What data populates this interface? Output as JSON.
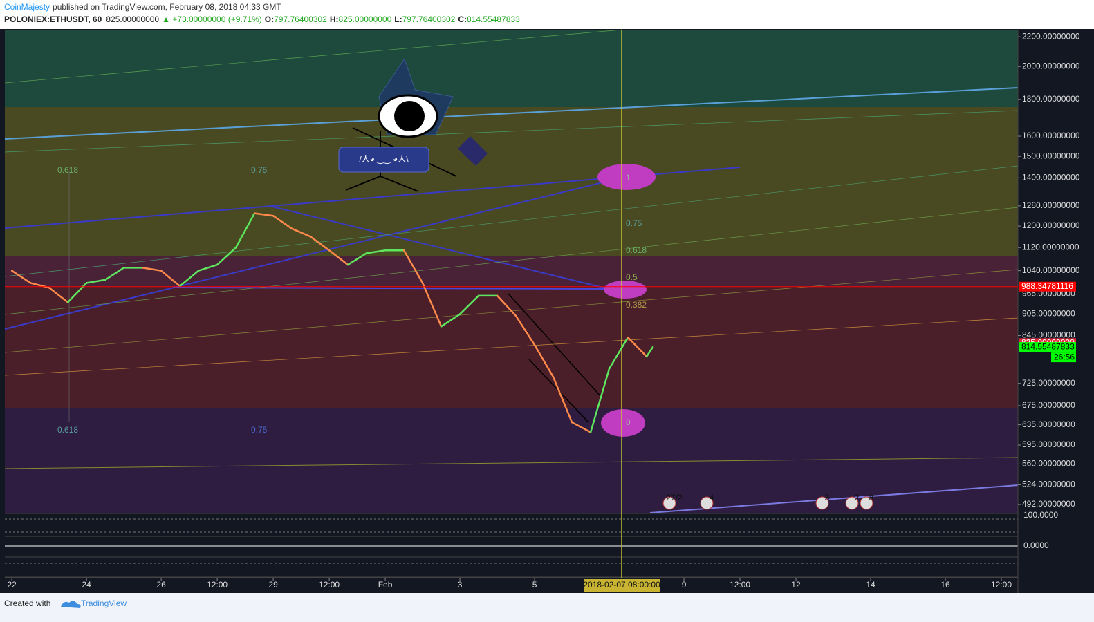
{
  "header": {
    "author": "CoinMajesty",
    "published": "published on TradingView.com, February 08, 2018 04:33 GMT",
    "symbol": "POLONIEX:ETHUSDT, 60",
    "last": "825.00000000",
    "change": "▲ +73.00000000 (+9.71%)",
    "o_label": "O:",
    "o": "797.76400302",
    "h_label": "H:",
    "h": "825.00000000",
    "l_label": "L:",
    "l": "797.76400302",
    "c_label": "C:",
    "c": "814.55487833"
  },
  "footer": {
    "created": "Created with",
    "brand": "TradingView"
  },
  "chart_data": {
    "type": "line",
    "log_scale": true,
    "x": [
      "2018-01-22T00:00",
      "2018-01-22T12:00",
      "2018-01-23T00:00",
      "2018-01-23T12:00",
      "2018-01-24T00:00",
      "2018-01-24T12:00",
      "2018-01-25T00:00",
      "2018-01-25T12:00",
      "2018-01-26T00:00",
      "2018-01-26T12:00",
      "2018-01-27T00:00",
      "2018-01-27T12:00",
      "2018-01-28T00:00",
      "2018-01-28T12:00",
      "2018-01-29T00:00",
      "2018-01-29T12:00",
      "2018-01-30T00:00",
      "2018-01-30T12:00",
      "2018-01-31T00:00",
      "2018-01-31T12:00",
      "2018-02-01T00:00",
      "2018-02-01T12:00",
      "2018-02-02T00:00",
      "2018-02-02T12:00",
      "2018-02-03T00:00",
      "2018-02-03T12:00",
      "2018-02-04T00:00",
      "2018-02-04T12:00",
      "2018-02-05T00:00",
      "2018-02-05T12:00",
      "2018-02-06T00:00",
      "2018-02-06T12:00",
      "2018-02-07T00:00",
      "2018-02-07T12:00",
      "2018-02-08T00:00",
      "2018-02-08T04:00"
    ],
    "series": [
      {
        "name": "ETHUSDT",
        "up_color": "#5ee65e",
        "down_color": "#ff8a4c",
        "values": [
          1040,
          1000,
          985,
          940,
          1000,
          1010,
          1050,
          1050,
          1040,
          990,
          1040,
          1060,
          1120,
          1250,
          1240,
          1190,
          1160,
          1110,
          1060,
          1100,
          1110,
          1110,
          1000,
          870,
          905,
          960,
          960,
          900,
          820,
          740,
          640,
          620,
          760,
          840,
          790,
          814.55487833
        ]
      }
    ],
    "xlim": [
      "2018-01-21T19:30",
      "2018-02-17T22:40"
    ],
    "xticks": [
      {
        "value": "2018-01-22T00:00",
        "label": "22"
      },
      {
        "value": "2018-01-24T00:00",
        "label": "24"
      },
      {
        "value": "2018-01-26T00:00",
        "label": "26"
      },
      {
        "value": "2018-01-27T12:00",
        "label": "12:00"
      },
      {
        "value": "2018-01-29T00:00",
        "label": "29"
      },
      {
        "value": "2018-01-30T12:00",
        "label": "12:00"
      },
      {
        "value": "2018-02-01T00:00",
        "label": "Feb"
      },
      {
        "value": "2018-02-03T00:00",
        "label": "3"
      },
      {
        "value": "2018-02-05T00:00",
        "label": "5"
      },
      {
        "value": "2018-02-09T00:00",
        "label": "9"
      },
      {
        "value": "2018-02-10T12:00",
        "label": "12:00"
      },
      {
        "value": "2018-02-12T00:00",
        "label": "12"
      },
      {
        "value": "2018-02-14T00:00",
        "label": "14"
      },
      {
        "value": "2018-02-16T00:00",
        "label": "16"
      },
      {
        "value": "2018-02-17T12:00",
        "label": "12:00"
      }
    ],
    "crosshair": {
      "value": "2018-02-07T08:00",
      "label": "2018-02-07 08:00:00"
    },
    "ylim": [
      479,
      2250
    ],
    "yticks": [
      {
        "value": 2200,
        "label": "2200.00000000"
      },
      {
        "value": 2000,
        "label": "2000.00000000"
      },
      {
        "value": 1800,
        "label": "1800.00000000"
      },
      {
        "value": 1600,
        "label": "1600.00000000"
      },
      {
        "value": 1500,
        "label": "1500.00000000"
      },
      {
        "value": 1400,
        "label": "1400.00000000"
      },
      {
        "value": 1280,
        "label": "1280.00000000"
      },
      {
        "value": 1200,
        "label": "1200.00000000"
      },
      {
        "value": 1120,
        "label": "1120.00000000"
      },
      {
        "value": 1040,
        "label": "1040.00000000"
      },
      {
        "value": 965,
        "label": "965.00000000"
      },
      {
        "value": 905,
        "label": "905.00000000"
      },
      {
        "value": 845,
        "label": "845.00000000"
      },
      {
        "value": 725,
        "label": "725.00000000"
      },
      {
        "value": 675,
        "label": "675.00000000"
      },
      {
        "value": 635,
        "label": "635.00000000"
      },
      {
        "value": 595,
        "label": "595.00000000"
      },
      {
        "value": 560,
        "label": "560.00000000"
      },
      {
        "value": 524,
        "label": "524.00000000"
      },
      {
        "value": 492,
        "label": "492.00000000"
      }
    ],
    "price_markers": [
      {
        "value": 988.34781116,
        "color": "#ff0000",
        "text_color": "#ffffff"
      },
      {
        "value": 825,
        "label": "825.00000000",
        "color": "#e0283a",
        "text_color": "#ffffff"
      },
      {
        "value": 814.55487833,
        "color": "#00ff00",
        "text_color": "#000000",
        "countdown": "26:56"
      }
    ],
    "annotations": [
      "0.618",
      "0.75",
      "0.618",
      "0.75",
      "0.75",
      "0.618",
      "0.5",
      "0.382",
      "1",
      "0",
      "/人◕ ‿‿ ◕人\\"
    ],
    "events": [
      "27/2",
      "4",
      "3",
      "2",
      "8"
    ],
    "indicator_ticks": [
      "100.0000",
      "0.0000"
    ]
  }
}
